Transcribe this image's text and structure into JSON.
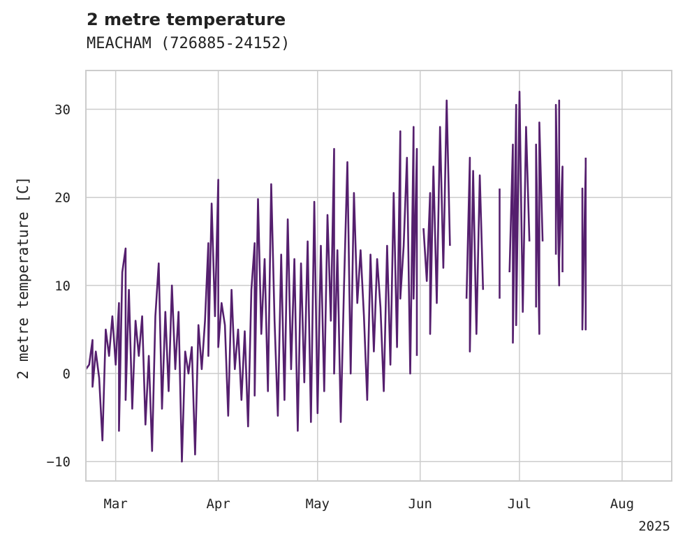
{
  "chart_data": {
    "type": "line",
    "title": "2 metre temperature",
    "subtitle": "MEACHAM (726885-24152)",
    "ylabel": "2 metre temperature [C]",
    "xlabel": "",
    "year_label": "2025",
    "xlim": [
      "2025-02-20",
      "2025-08-16"
    ],
    "ylim": [
      -12.2,
      34.4
    ],
    "yticks": [
      -10,
      0,
      10,
      20,
      30
    ],
    "xticks": [
      {
        "date": "2025-03-01",
        "label": "Mar"
      },
      {
        "date": "2025-04-01",
        "label": "Apr"
      },
      {
        "date": "2025-05-01",
        "label": "May"
      },
      {
        "date": "2025-06-01",
        "label": "Jun"
      },
      {
        "date": "2025-07-01",
        "label": "Jul"
      },
      {
        "date": "2025-08-01",
        "label": "Aug"
      }
    ],
    "grid": true,
    "line_color": "#551f6e",
    "series": [
      {
        "segments": [
          [
            [
              "2025-02-20",
              0.5
            ],
            [
              "2025-02-21",
              1.0
            ],
            [
              "2025-02-22",
              3.8
            ],
            [
              "2025-02-22",
              -1.5
            ],
            [
              "2025-02-23",
              2.5
            ],
            [
              "2025-02-24",
              -0.5
            ],
            [
              "2025-02-25",
              -7.6
            ],
            [
              "2025-02-26",
              5.0
            ],
            [
              "2025-02-27",
              2.0
            ],
            [
              "2025-02-28",
              6.5
            ],
            [
              "2025-03-01",
              1.0
            ],
            [
              "2025-03-02",
              8.0
            ],
            [
              "2025-03-02",
              -6.5
            ],
            [
              "2025-03-03",
              11.5
            ],
            [
              "2025-03-04",
              14.2
            ],
            [
              "2025-03-04",
              -3.0
            ],
            [
              "2025-03-05",
              9.5
            ],
            [
              "2025-03-06",
              -4.0
            ],
            [
              "2025-03-07",
              6.0
            ],
            [
              "2025-03-08",
              2.0
            ],
            [
              "2025-03-09",
              6.5
            ],
            [
              "2025-03-10",
              -5.8
            ],
            [
              "2025-03-11",
              2.0
            ],
            [
              "2025-03-12",
              -8.8
            ],
            [
              "2025-03-13",
              6.5
            ],
            [
              "2025-03-14",
              12.5
            ],
            [
              "2025-03-15",
              -4.0
            ],
            [
              "2025-03-16",
              7.0
            ],
            [
              "2025-03-17",
              -2.0
            ],
            [
              "2025-03-18",
              10.0
            ],
            [
              "2025-03-19",
              0.5
            ],
            [
              "2025-03-20",
              7.0
            ],
            [
              "2025-03-21",
              -10.0
            ],
            [
              "2025-03-22",
              2.5
            ],
            [
              "2025-03-23",
              0.0
            ],
            [
              "2025-03-24",
              3.0
            ],
            [
              "2025-03-25",
              -9.2
            ],
            [
              "2025-03-26",
              5.5
            ],
            [
              "2025-03-27",
              0.5
            ],
            [
              "2025-03-28",
              6.0
            ],
            [
              "2025-03-29",
              14.8
            ],
            [
              "2025-03-29",
              2.0
            ],
            [
              "2025-03-30",
              19.3
            ],
            [
              "2025-03-31",
              6.5
            ],
            [
              "2025-04-01",
              22.0
            ],
            [
              "2025-04-01",
              3.0
            ],
            [
              "2025-04-02",
              8.0
            ],
            [
              "2025-04-03",
              5.5
            ],
            [
              "2025-04-04",
              -4.8
            ],
            [
              "2025-04-05",
              9.5
            ],
            [
              "2025-04-06",
              0.5
            ],
            [
              "2025-04-07",
              5.0
            ],
            [
              "2025-04-08",
              -3.0
            ],
            [
              "2025-04-09",
              4.8
            ],
            [
              "2025-04-10",
              -6.0
            ],
            [
              "2025-04-11",
              9.5
            ],
            [
              "2025-04-12",
              14.8
            ],
            [
              "2025-04-12",
              -2.5
            ],
            [
              "2025-04-13",
              19.8
            ],
            [
              "2025-04-14",
              4.5
            ],
            [
              "2025-04-15",
              13.0
            ],
            [
              "2025-04-16",
              -2.0
            ],
            [
              "2025-04-17",
              21.5
            ],
            [
              "2025-04-18",
              6.0
            ],
            [
              "2025-04-19",
              -4.8
            ],
            [
              "2025-04-20",
              13.5
            ],
            [
              "2025-04-21",
              -3.0
            ],
            [
              "2025-04-22",
              17.5
            ],
            [
              "2025-04-23",
              0.5
            ],
            [
              "2025-04-24",
              13.0
            ],
            [
              "2025-04-25",
              -6.5
            ],
            [
              "2025-04-26",
              12.5
            ],
            [
              "2025-04-27",
              -1.0
            ],
            [
              "2025-04-28",
              15.0
            ],
            [
              "2025-04-29",
              -5.5
            ],
            [
              "2025-04-30",
              19.5
            ],
            [
              "2025-05-01",
              -4.5
            ],
            [
              "2025-05-02",
              14.5
            ],
            [
              "2025-05-03",
              -2.0
            ],
            [
              "2025-05-04",
              18.0
            ],
            [
              "2025-05-05",
              6.0
            ],
            [
              "2025-05-06",
              25.5
            ],
            [
              "2025-05-06",
              0.0
            ],
            [
              "2025-05-07",
              14.0
            ],
            [
              "2025-05-08",
              -5.5
            ],
            [
              "2025-05-09",
              10.0
            ],
            [
              "2025-05-10",
              24.0
            ],
            [
              "2025-05-11",
              0.0
            ],
            [
              "2025-05-12",
              20.5
            ],
            [
              "2025-05-13",
              8.0
            ],
            [
              "2025-05-14",
              14.0
            ],
            [
              "2025-05-15",
              6.5
            ],
            [
              "2025-05-16",
              -3.0
            ],
            [
              "2025-05-17",
              13.5
            ],
            [
              "2025-05-18",
              2.5
            ],
            [
              "2025-05-19",
              13.0
            ],
            [
              "2025-05-20",
              7.5
            ],
            [
              "2025-05-21",
              -2.0
            ],
            [
              "2025-05-22",
              14.5
            ],
            [
              "2025-05-23",
              1.0
            ],
            [
              "2025-05-24",
              20.5
            ],
            [
              "2025-05-25",
              3.0
            ],
            [
              "2025-05-26",
              27.5
            ],
            [
              "2025-05-26",
              8.5
            ],
            [
              "2025-05-27",
              14.5
            ],
            [
              "2025-05-28",
              24.5
            ],
            [
              "2025-05-29",
              0.0
            ],
            [
              "2025-05-30",
              28.0
            ],
            [
              "2025-05-30",
              8.5
            ],
            [
              "2025-05-31",
              25.5
            ],
            [
              "2025-05-31",
              2.0
            ]
          ],
          [
            [
              "2025-06-02",
              16.5
            ],
            [
              "2025-06-03",
              10.5
            ],
            [
              "2025-06-04",
              20.5
            ],
            [
              "2025-06-04",
              4.5
            ],
            [
              "2025-06-05",
              23.5
            ],
            [
              "2025-06-06",
              8.0
            ],
            [
              "2025-06-07",
              28.0
            ],
            [
              "2025-06-08",
              12.0
            ],
            [
              "2025-06-09",
              31.0
            ],
            [
              "2025-06-10",
              14.5
            ]
          ],
          [
            [
              "2025-06-15",
              8.5
            ],
            [
              "2025-06-16",
              24.5
            ],
            [
              "2025-06-16",
              2.5
            ],
            [
              "2025-06-17",
              23.0
            ],
            [
              "2025-06-18",
              4.5
            ],
            [
              "2025-06-19",
              22.5
            ],
            [
              "2025-06-20",
              9.5
            ]
          ],
          [
            [
              "2025-06-25",
              8.5
            ],
            [
              "2025-06-25",
              21.0
            ]
          ],
          [
            [
              "2025-06-28",
              11.5
            ],
            [
              "2025-06-29",
              26.0
            ],
            [
              "2025-06-29",
              3.5
            ],
            [
              "2025-06-30",
              30.5
            ],
            [
              "2025-06-30",
              5.5
            ],
            [
              "2025-07-01",
              32.0
            ],
            [
              "2025-07-02",
              7.0
            ],
            [
              "2025-07-03",
              28.0
            ],
            [
              "2025-07-04",
              15.0
            ]
          ],
          [
            [
              "2025-07-06",
              7.5
            ],
            [
              "2025-07-06",
              26.0
            ],
            [
              "2025-07-07",
              4.5
            ],
            [
              "2025-07-07",
              28.5
            ],
            [
              "2025-07-08",
              15.0
            ]
          ],
          [
            [
              "2025-07-12",
              13.5
            ],
            [
              "2025-07-12",
              30.5
            ],
            [
              "2025-07-13",
              10.0
            ],
            [
              "2025-07-13",
              31.0
            ],
            [
              "2025-07-13",
              13.0
            ],
            [
              "2025-07-14",
              23.5
            ],
            [
              "2025-07-14",
              11.5
            ]
          ],
          [
            [
              "2025-07-20",
              9.0
            ],
            [
              "2025-07-20",
              21.0
            ],
            [
              "2025-07-20",
              5.0
            ],
            [
              "2025-07-21",
              23.5
            ],
            [
              "2025-07-21",
              5.0
            ],
            [
              "2025-07-21",
              24.5
            ]
          ]
        ]
      }
    ]
  }
}
